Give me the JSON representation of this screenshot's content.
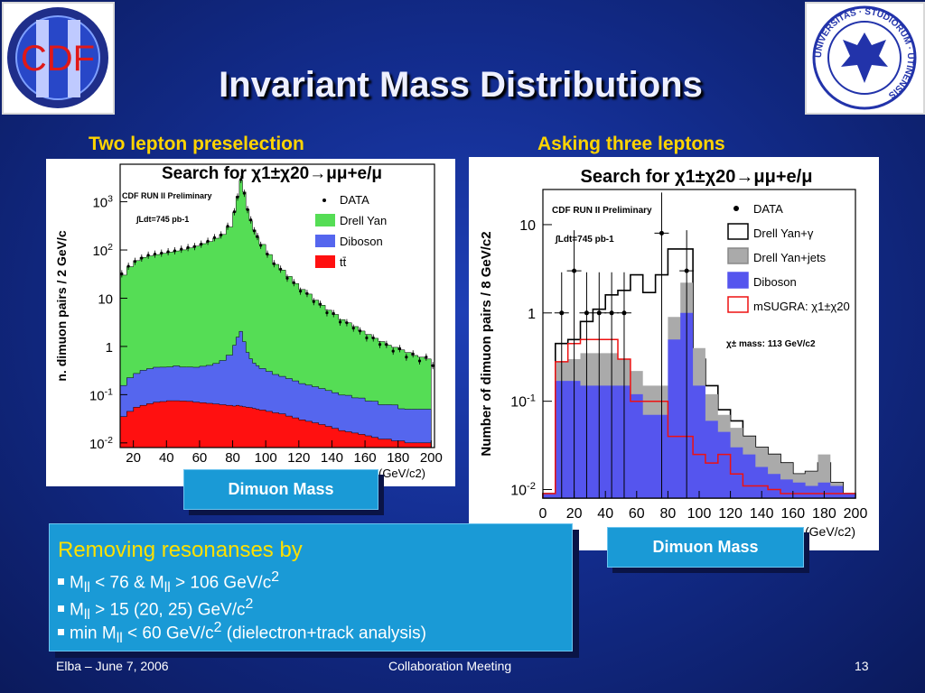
{
  "slide": {
    "title": "Invariant Mass Distributions",
    "left_subtitle": "Two lepton preselection",
    "right_subtitle": "Asking three leptons",
    "button1": "Dimuon Mass",
    "button2": "Dimuon Mass",
    "cdf_logo_text": "CDF",
    "uni_logo_text": "UNIVERSITAS · STUDIORUM · UTINENSIS",
    "info": {
      "heading": "Removing resonanses by",
      "bullets": [
        {
          "a": "M",
          "sub": "ll",
          "b": " < 76 & M",
          "sub2": "ll",
          "c": " > 106 GeV/c",
          "sup": "2"
        },
        {
          "a": "M",
          "sub": "ll",
          "b": " > 15 (20, 25) GeV/c",
          "sup": "2"
        },
        {
          "a": "min M",
          "sub": "ll",
          "b": " < 60 GeV/c",
          "sup": "2",
          "c": " (dielectron+track analysis)"
        }
      ]
    },
    "footer": {
      "left": "Elba – June 7, 2006",
      "center": "Collaboration Meeting",
      "right": "13"
    }
  },
  "chart_data": [
    {
      "type": "area",
      "title": "Search for χ1±χ20→μμ+e/μ",
      "run_label": "CDF RUN II Preliminary",
      "lumi_label": "∫Ldt=745 pb-1",
      "ylabel": "n. dimuon pairs / 2 GeV/c",
      "xlabel": "(GeV/c2)",
      "xticks": [
        "20",
        "40",
        "60",
        "80",
        "100",
        "120",
        "140",
        "160",
        "180",
        "200"
      ],
      "yticks": [
        "10-2",
        "10-1",
        "1",
        "10",
        "102",
        "103"
      ],
      "xlim": [
        12,
        202
      ],
      "ylim": [
        0.008,
        6000
      ],
      "yscale": "log",
      "legend": [
        "DATA",
        "Drell Yan",
        "Diboson",
        "tt̄"
      ],
      "colors": {
        "drell_yan": "#55dd55",
        "diboson": "#5566ee",
        "ttbar": "#ff1010"
      },
      "x": [
        12,
        16,
        20,
        24,
        28,
        32,
        36,
        40,
        44,
        48,
        52,
        56,
        60,
        64,
        68,
        72,
        76,
        80,
        82,
        84,
        86,
        88,
        90,
        92,
        94,
        96,
        100,
        104,
        108,
        112,
        116,
        120,
        124,
        128,
        132,
        136,
        140,
        144,
        148,
        152,
        156,
        160,
        164,
        168,
        172,
        176,
        180,
        184,
        188,
        192,
        196,
        200
      ],
      "series": [
        {
          "name": "tt̄",
          "values": [
            0.035,
            0.045,
            0.055,
            0.06,
            0.065,
            0.07,
            0.072,
            0.075,
            0.075,
            0.074,
            0.073,
            0.07,
            0.068,
            0.066,
            0.064,
            0.062,
            0.06,
            0.058,
            0.06,
            0.058,
            0.056,
            0.055,
            0.054,
            0.052,
            0.05,
            0.048,
            0.045,
            0.042,
            0.04,
            0.036,
            0.033,
            0.03,
            0.028,
            0.026,
            0.024,
            0.022,
            0.02,
            0.018,
            0.017,
            0.016,
            0.015,
            0.014,
            0.013,
            0.012,
            0.012,
            0.011,
            0.011,
            0.01,
            0.01,
            0.01,
            0.01,
            0.01
          ]
        },
        {
          "name": "Diboson",
          "values": [
            0.12,
            0.18,
            0.22,
            0.26,
            0.28,
            0.3,
            0.3,
            0.3,
            0.32,
            0.3,
            0.3,
            0.3,
            0.32,
            0.34,
            0.38,
            0.45,
            0.6,
            1.0,
            1.5,
            2.0,
            1.2,
            0.7,
            0.5,
            0.4,
            0.35,
            0.3,
            0.26,
            0.22,
            0.2,
            0.18,
            0.16,
            0.14,
            0.13,
            0.12,
            0.11,
            0.1,
            0.09,
            0.08,
            0.08,
            0.07,
            0.07,
            0.06,
            0.06,
            0.05,
            0.05,
            0.05,
            0.04,
            0.04,
            0.04,
            0.04,
            0.04,
            0.04
          ]
        },
        {
          "name": "Drell Yan",
          "values": [
            30,
            45,
            60,
            70,
            75,
            80,
            85,
            90,
            95,
            100,
            110,
            120,
            135,
            150,
            175,
            210,
            300,
            600,
            1300,
            2800,
            1600,
            700,
            400,
            260,
            180,
            130,
            80,
            50,
            38,
            28,
            20,
            15,
            12,
            9,
            7,
            5.5,
            4.5,
            3.5,
            3,
            2.5,
            2,
            1.7,
            1.4,
            1.2,
            1,
            0.9,
            0.8,
            0.7,
            0.6,
            0.55,
            0.5,
            0.45
          ]
        },
        {
          "name": "DATA",
          "values": [
            32,
            46,
            58,
            68,
            78,
            82,
            86,
            92,
            96,
            104,
            112,
            118,
            132,
            152,
            180,
            205,
            310,
            620,
            1250,
            2900,
            1500,
            690,
            420,
            250,
            190,
            125,
            82,
            52,
            40,
            26,
            21,
            14,
            12.5,
            8.5,
            7.5,
            5,
            4.8,
            3.2,
            3.1,
            2.4,
            2.1,
            1.5,
            1.5,
            1.1,
            1.1,
            0.8,
            0.9,
            0.6,
            0.7,
            0.5,
            0.6,
            0.4
          ]
        }
      ]
    },
    {
      "type": "bar",
      "title": "Search for χ1±χ20→μμ+e/μ",
      "run_label": "CDF RUN II Preliminary",
      "lumi_label": "∫Ldt=745 pb-1",
      "mass_label": "χ± mass: 113 GeV/c2",
      "ylabel": "Number of dimuon pairs / 8 GeV/c2",
      "xlabel": "(GeV/c2)",
      "xticks": [
        "0",
        "20",
        "40",
        "60",
        "80",
        "100",
        "120",
        "140",
        "160",
        "180",
        "200"
      ],
      "yticks": [
        "10-2",
        "10-1",
        "1",
        "10"
      ],
      "xlim": [
        0,
        200
      ],
      "ylim": [
        0.008,
        25
      ],
      "yscale": "log",
      "legend": [
        "DATA",
        "Drell Yan+γ",
        "Drell Yan+jets",
        "Diboson",
        "mSUGRA: χ1±χ20"
      ],
      "colors": {
        "diboson": "#5555ee",
        "dy_jets": "#aaaaaa",
        "dy_gamma": "#ffffff",
        "msugra": "#ee1111"
      },
      "bin_edges": [
        0,
        8,
        16,
        24,
        32,
        40,
        48,
        56,
        64,
        72,
        80,
        88,
        96,
        104,
        112,
        120,
        128,
        136,
        144,
        152,
        160,
        168,
        176,
        184,
        192,
        200
      ],
      "series": [
        {
          "name": "Diboson",
          "values": [
            0.009,
            0.17,
            0.17,
            0.15,
            0.15,
            0.15,
            0.15,
            0.12,
            0.07,
            0.07,
            0.5,
            1.0,
            0.15,
            0.06,
            0.045,
            0.03,
            0.025,
            0.018,
            0.015,
            0.013,
            0.012,
            0.011,
            0.012,
            0.011,
            0.009
          ]
        },
        {
          "name": "Drell Yan+jets",
          "values": [
            0.009,
            0.28,
            0.3,
            0.35,
            0.35,
            0.35,
            0.3,
            0.22,
            0.15,
            0.15,
            0.9,
            2.2,
            0.4,
            0.12,
            0.07,
            0.05,
            0.04,
            0.03,
            0.025,
            0.02,
            0.015,
            0.016,
            0.025,
            0.012,
            0.009
          ]
        },
        {
          "name": "Drell Yan+γ",
          "values": [
            0.009,
            0.45,
            0.5,
            0.8,
            1.1,
            1.6,
            1.8,
            2.7,
            1.7,
            2.7,
            5.3,
            5.3,
            0.3,
            0.15,
            0.08,
            0.06,
            0.04,
            0.03,
            0.025,
            0.02,
            0.015,
            0.016,
            0.02,
            0.012,
            0.009
          ]
        },
        {
          "name": "mSUGRA: χ1±χ20",
          "values": [
            0.009,
            0.28,
            0.45,
            0.5,
            0.5,
            0.5,
            0.3,
            0.1,
            0.1,
            0.1,
            0.04,
            0.04,
            0.025,
            0.02,
            0.025,
            0.015,
            0.011,
            0.011,
            0.01,
            0.009,
            0.009,
            0.009,
            0.009,
            0.009,
            0.009
          ]
        }
      ],
      "data_points": {
        "x": [
          12,
          20,
          28,
          36,
          44,
          52,
          76,
          92
        ],
        "y": [
          1,
          3,
          1,
          1,
          1,
          1,
          8,
          3
        ]
      }
    }
  ]
}
